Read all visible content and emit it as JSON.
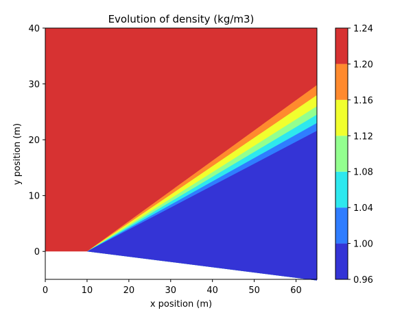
{
  "chart_data": {
    "type": "filled-contour",
    "title": "Evolution of density (kg/m3)",
    "xlabel": "x position (m)",
    "ylabel": "y position (m)",
    "xlim": [
      0,
      65
    ],
    "ylim": [
      -5,
      40
    ],
    "xticks": [
      0,
      10,
      20,
      30,
      40,
      50,
      60
    ],
    "yticks": [
      0,
      10,
      20,
      30,
      40
    ],
    "grid": false,
    "domain": {
      "wall_flat": [
        [
          0,
          0
        ],
        [
          10,
          0
        ]
      ],
      "wall_ramp": [
        [
          10,
          0
        ],
        [
          65,
          -5.2
        ]
      ]
    },
    "shock_origin": [
      10,
      0
    ],
    "bands": [
      {
        "range": [
          0.96,
          1.0
        ],
        "color": "#3434d6",
        "top_at_x65": 21.6
      },
      {
        "range": [
          1.0,
          1.04
        ],
        "color": "#2f7dff",
        "top_at_x65": 23.0
      },
      {
        "range": [
          1.04,
          1.08
        ],
        "color": "#2ee8ee",
        "top_at_x65": 24.5
      },
      {
        "range": [
          1.08,
          1.12
        ],
        "color": "#93ff8f",
        "top_at_x65": 26.0
      },
      {
        "range": [
          1.12,
          1.16
        ],
        "color": "#f1ff2e",
        "top_at_x65": 28.0
      },
      {
        "range": [
          1.16,
          1.2
        ],
        "color": "#ff8a2e",
        "top_at_x65": 29.8
      },
      {
        "range": [
          1.2,
          1.24
        ],
        "color": "#d73232",
        "top_at_x65": 40.0
      }
    ],
    "colorbar": {
      "ticks": [
        "0.96",
        "1.00",
        "1.04",
        "1.08",
        "1.12",
        "1.16",
        "1.20",
        "1.24"
      ],
      "min": 0.96,
      "max": 1.24
    }
  }
}
